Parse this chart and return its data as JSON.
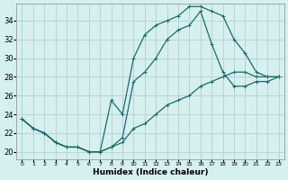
{
  "xlabel": "Humidex (Indice chaleur)",
  "background_color": "#d6efef",
  "grid_color": "#b8d4d4",
  "line_color": "#1a6b6b",
  "xlim": [
    -0.5,
    23.5
  ],
  "ylim": [
    19.2,
    35.8
  ],
  "xticks": [
    0,
    1,
    2,
    3,
    4,
    5,
    6,
    7,
    8,
    9,
    10,
    11,
    12,
    13,
    14,
    15,
    16,
    17,
    18,
    19,
    20,
    21,
    22,
    23
  ],
  "yticks": [
    20,
    22,
    24,
    26,
    28,
    30,
    32,
    34
  ],
  "curve1_x": [
    0,
    1,
    2,
    3,
    4,
    5,
    6,
    7,
    8,
    9,
    10,
    11,
    12,
    13,
    14,
    15,
    16,
    17,
    18,
    19,
    20,
    21,
    22,
    23
  ],
  "curve1_y": [
    23.5,
    22.5,
    22.0,
    21.0,
    20.5,
    20.5,
    20.0,
    20.0,
    25.5,
    24.0,
    30.0,
    32.5,
    33.5,
    34.0,
    34.5,
    35.5,
    35.5,
    35.0,
    34.5,
    32.0,
    30.5,
    28.5,
    28.0,
    28.0
  ],
  "curve2_x": [
    0,
    1,
    2,
    3,
    4,
    5,
    6,
    7,
    8,
    9,
    10,
    11,
    12,
    13,
    14,
    15,
    16,
    17,
    18,
    19,
    20,
    21,
    22,
    23
  ],
  "curve2_y": [
    23.5,
    22.5,
    22.0,
    21.0,
    20.5,
    20.5,
    20.0,
    20.0,
    20.5,
    21.5,
    27.5,
    28.5,
    30.0,
    32.0,
    33.0,
    33.5,
    35.0,
    31.5,
    28.5,
    27.0,
    27.0,
    27.5,
    27.5,
    28.0
  ],
  "curve3_x": [
    0,
    1,
    2,
    3,
    4,
    5,
    6,
    7,
    8,
    9,
    10,
    11,
    12,
    13,
    14,
    15,
    16,
    17,
    18,
    19,
    20,
    21,
    22,
    23
  ],
  "curve3_y": [
    23.5,
    22.5,
    22.0,
    21.0,
    20.5,
    20.5,
    20.0,
    20.0,
    20.5,
    21.0,
    22.5,
    23.0,
    24.0,
    25.0,
    25.5,
    26.0,
    27.0,
    27.5,
    28.0,
    28.5,
    28.5,
    28.0,
    28.0,
    28.0
  ]
}
